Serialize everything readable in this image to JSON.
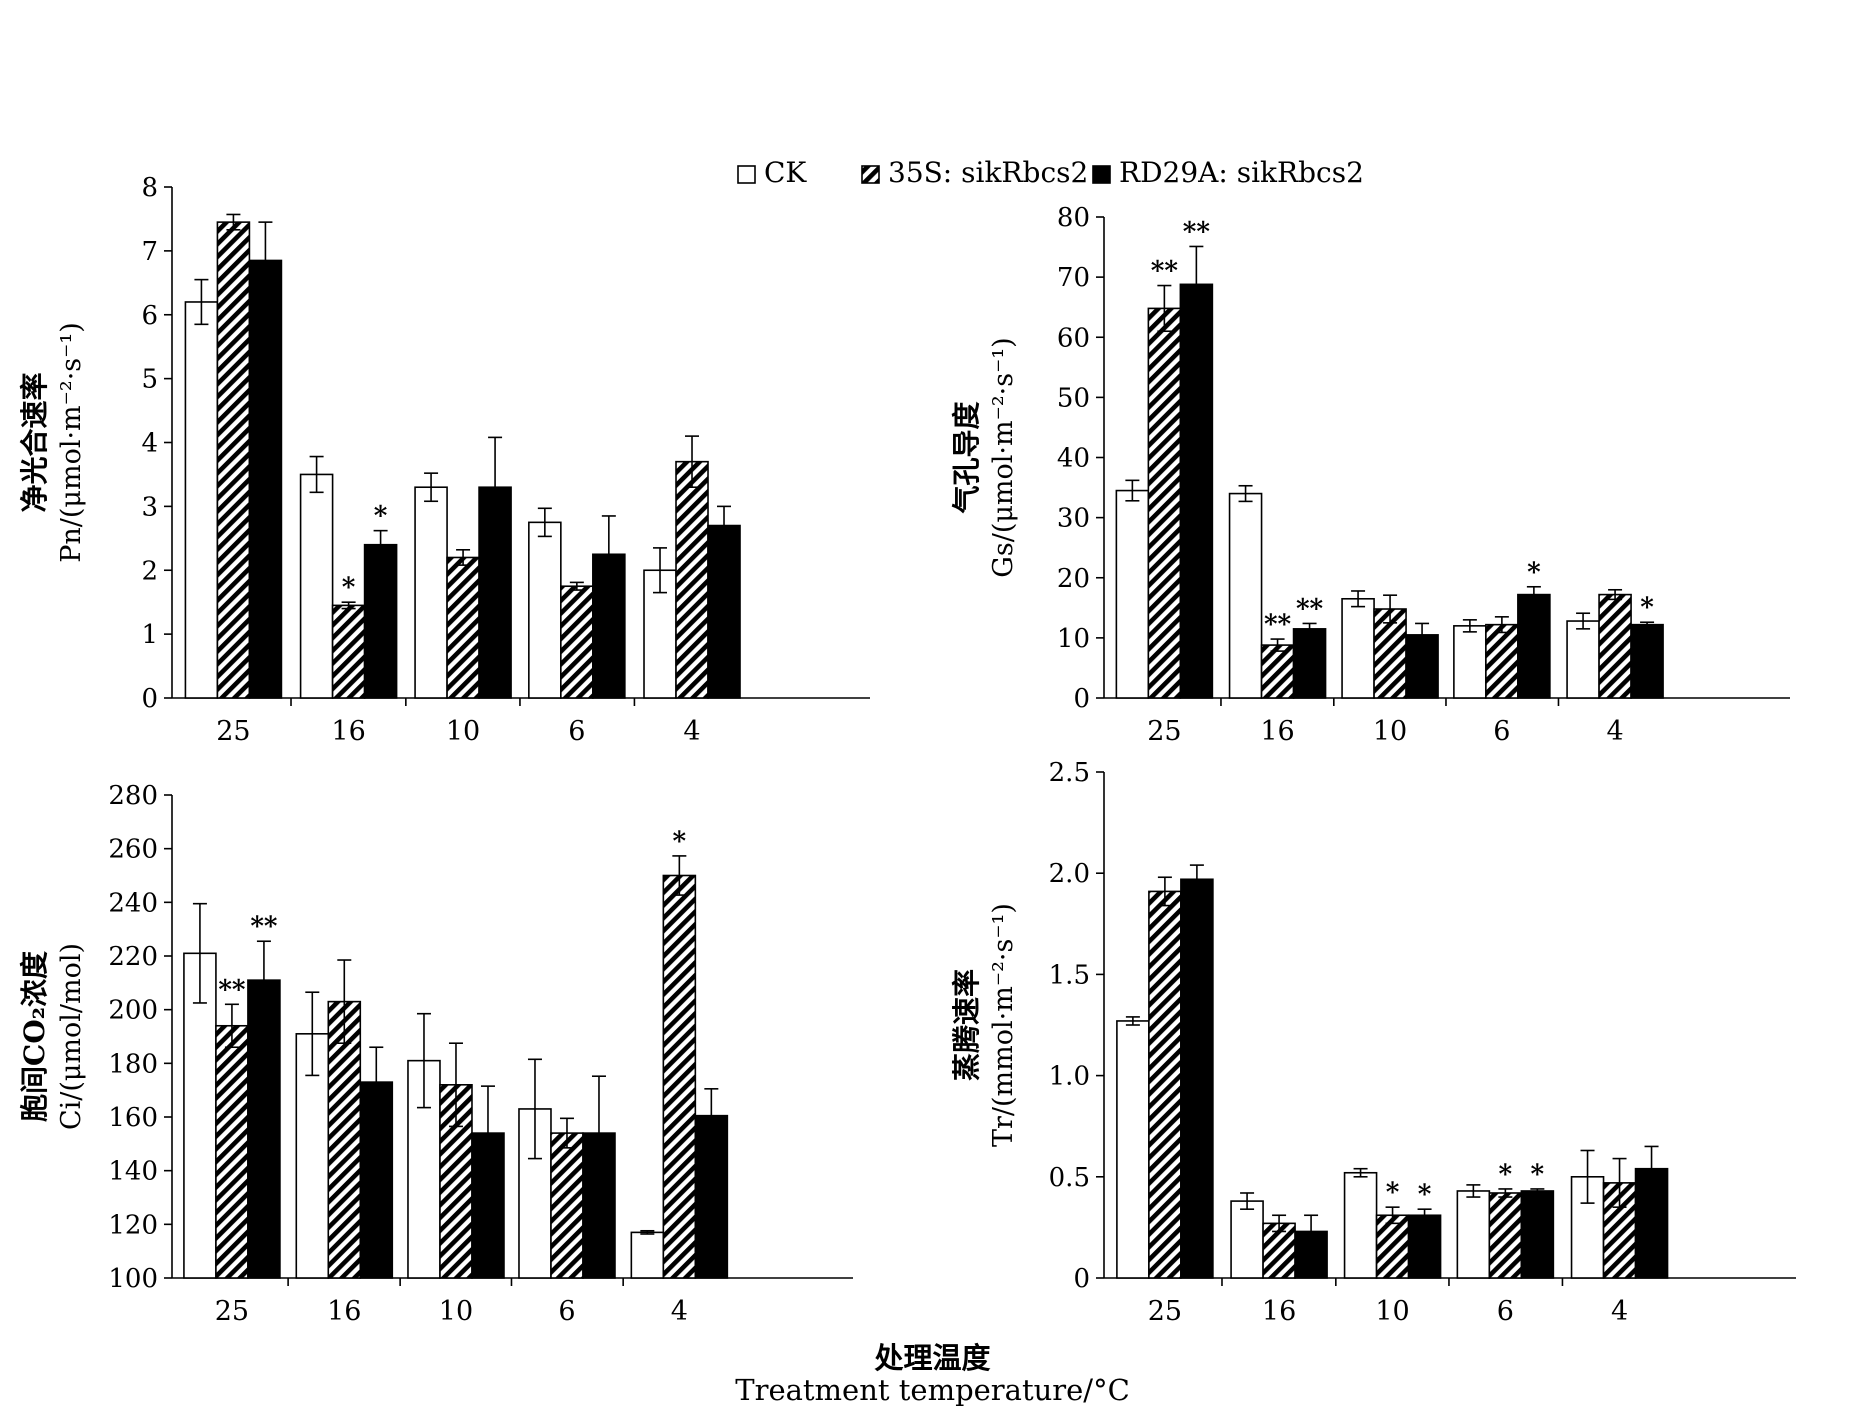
{
  "legend": {
    "items": [
      {
        "key": "ck",
        "label": "CK",
        "fill": "white"
      },
      {
        "key": "s35",
        "label": "35S: sikRbcs2",
        "fill": "hatch"
      },
      {
        "key": "rd29a",
        "label": "RD29A: sikRbcs2",
        "fill": "black"
      }
    ]
  },
  "x_caption": {
    "cn": "处理温度",
    "en": "Treatment temperature/°C"
  },
  "colors": {
    "bar_stroke": "#000000",
    "solid": "#000000",
    "open": "#ffffff"
  },
  "chart_data": [
    {
      "type": "bar",
      "id": "pn",
      "ylabel_cn": "净光合速率",
      "ylabel_en": "Pn/(μmol·m⁻²·s⁻¹)",
      "categories": [
        "25",
        "16",
        "10",
        "6",
        "4"
      ],
      "ylim": [
        0,
        8
      ],
      "yticks": [
        "0",
        "1",
        "2",
        "3",
        "4",
        "5",
        "6",
        "7",
        "8"
      ],
      "series": [
        {
          "name": "CK",
          "values": [
            6.2,
            3.5,
            3.3,
            2.75,
            2.0
          ],
          "errors": [
            0.35,
            0.28,
            0.22,
            0.22,
            0.35
          ],
          "marks": [
            "",
            "",
            "",
            "",
            ""
          ]
        },
        {
          "name": "35S: sikRbcs2",
          "values": [
            7.45,
            1.45,
            2.2,
            1.75,
            3.7
          ],
          "errors": [
            0.12,
            0.05,
            0.12,
            0.06,
            0.4
          ],
          "marks": [
            "",
            "*",
            "",
            "",
            ""
          ]
        },
        {
          "name": "RD29A: sikRbcs2",
          "values": [
            6.85,
            2.4,
            3.3,
            2.25,
            2.7
          ],
          "errors": [
            0.6,
            0.22,
            0.78,
            0.6,
            0.3
          ],
          "marks": [
            "",
            "*",
            "",
            "",
            ""
          ]
        }
      ]
    },
    {
      "type": "bar",
      "id": "gs",
      "ylabel_cn": "气孔导度",
      "ylabel_en": "Gs/(μmol·m⁻²·s⁻¹)",
      "categories": [
        "25",
        "16",
        "10",
        "6",
        "4"
      ],
      "ylim": [
        0,
        80
      ],
      "yticks": [
        "0",
        "10",
        "20",
        "30",
        "40",
        "50",
        "60",
        "70",
        "80"
      ],
      "series": [
        {
          "name": "CK",
          "values": [
            34.5,
            34.0,
            16.5,
            12.0,
            12.8
          ],
          "errors": [
            1.7,
            1.3,
            1.3,
            1.0,
            1.3
          ],
          "marks": [
            "",
            "",
            "",
            "",
            ""
          ]
        },
        {
          "name": "35S: sikRbcs2",
          "values": [
            64.8,
            8.8,
            14.8,
            12.2,
            17.2
          ],
          "errors": [
            3.8,
            1.0,
            2.3,
            1.3,
            0.8
          ],
          "marks": [
            "**",
            "**",
            "",
            "",
            ""
          ]
        },
        {
          "name": "RD29A: sikRbcs2",
          "values": [
            68.8,
            11.5,
            10.5,
            17.2,
            12.2
          ],
          "errors": [
            6.3,
            0.9,
            1.9,
            1.3,
            0.4
          ],
          "marks": [
            "**",
            "**",
            "",
            "*",
            "*"
          ]
        }
      ]
    },
    {
      "type": "bar",
      "id": "ci",
      "ylabel_cn": "胞间CO₂浓度",
      "ylabel_en": "Ci/(μmol/mol)",
      "categories": [
        "25",
        "16",
        "10",
        "6",
        "4"
      ],
      "ylim": [
        100,
        280
      ],
      "yticks": [
        "100",
        "120",
        "140",
        "160",
        "180",
        "200",
        "220",
        "240",
        "260",
        "280"
      ],
      "series": [
        {
          "name": "CK",
          "values": [
            221,
            191,
            181,
            163,
            117
          ],
          "errors": [
            18.5,
            15.5,
            17.5,
            18.5,
            0.6
          ],
          "marks": [
            "",
            "",
            "",
            "",
            ""
          ]
        },
        {
          "name": "35S: sikRbcs2",
          "values": [
            194,
            203,
            172,
            154,
            250
          ],
          "errors": [
            8,
            15.5,
            15.5,
            5.5,
            7.3
          ],
          "marks": [
            "**",
            "",
            "",
            "",
            "*"
          ]
        },
        {
          "name": "RD29A: sikRbcs2",
          "values": [
            211,
            173,
            154,
            154,
            160.5
          ],
          "errors": [
            14.5,
            13,
            17.5,
            21.2,
            10
          ],
          "marks": [
            "**",
            "",
            "",
            "",
            ""
          ]
        }
      ]
    },
    {
      "type": "bar",
      "id": "tr",
      "ylabel_cn": "蒸腾速率",
      "ylabel_en": "Tr/(mmol·m⁻²·s⁻¹)",
      "categories": [
        "25",
        "16",
        "10",
        "6",
        "4"
      ],
      "ylim": [
        0,
        2.5
      ],
      "yticks": [
        "0",
        "0.5",
        "1.0",
        "1.5",
        "2.0",
        "2.5"
      ],
      "series": [
        {
          "name": "CK",
          "values": [
            1.27,
            0.38,
            0.52,
            0.43,
            0.5
          ],
          "errors": [
            0.02,
            0.04,
            0.02,
            0.03,
            0.13
          ],
          "marks": [
            "",
            "",
            "",
            "",
            ""
          ]
        },
        {
          "name": "35S: sikRbcs2",
          "values": [
            1.91,
            0.27,
            0.31,
            0.42,
            0.47
          ],
          "errors": [
            0.07,
            0.04,
            0.04,
            0.02,
            0.12
          ],
          "marks": [
            "",
            "",
            "*",
            "*",
            ""
          ]
        },
        {
          "name": "RD29A: sikRbcs2",
          "values": [
            1.97,
            0.23,
            0.31,
            0.43,
            0.54
          ],
          "errors": [
            0.07,
            0.08,
            0.03,
            0.01,
            0.11
          ],
          "marks": [
            "",
            "",
            "*",
            "*",
            ""
          ]
        }
      ]
    }
  ]
}
